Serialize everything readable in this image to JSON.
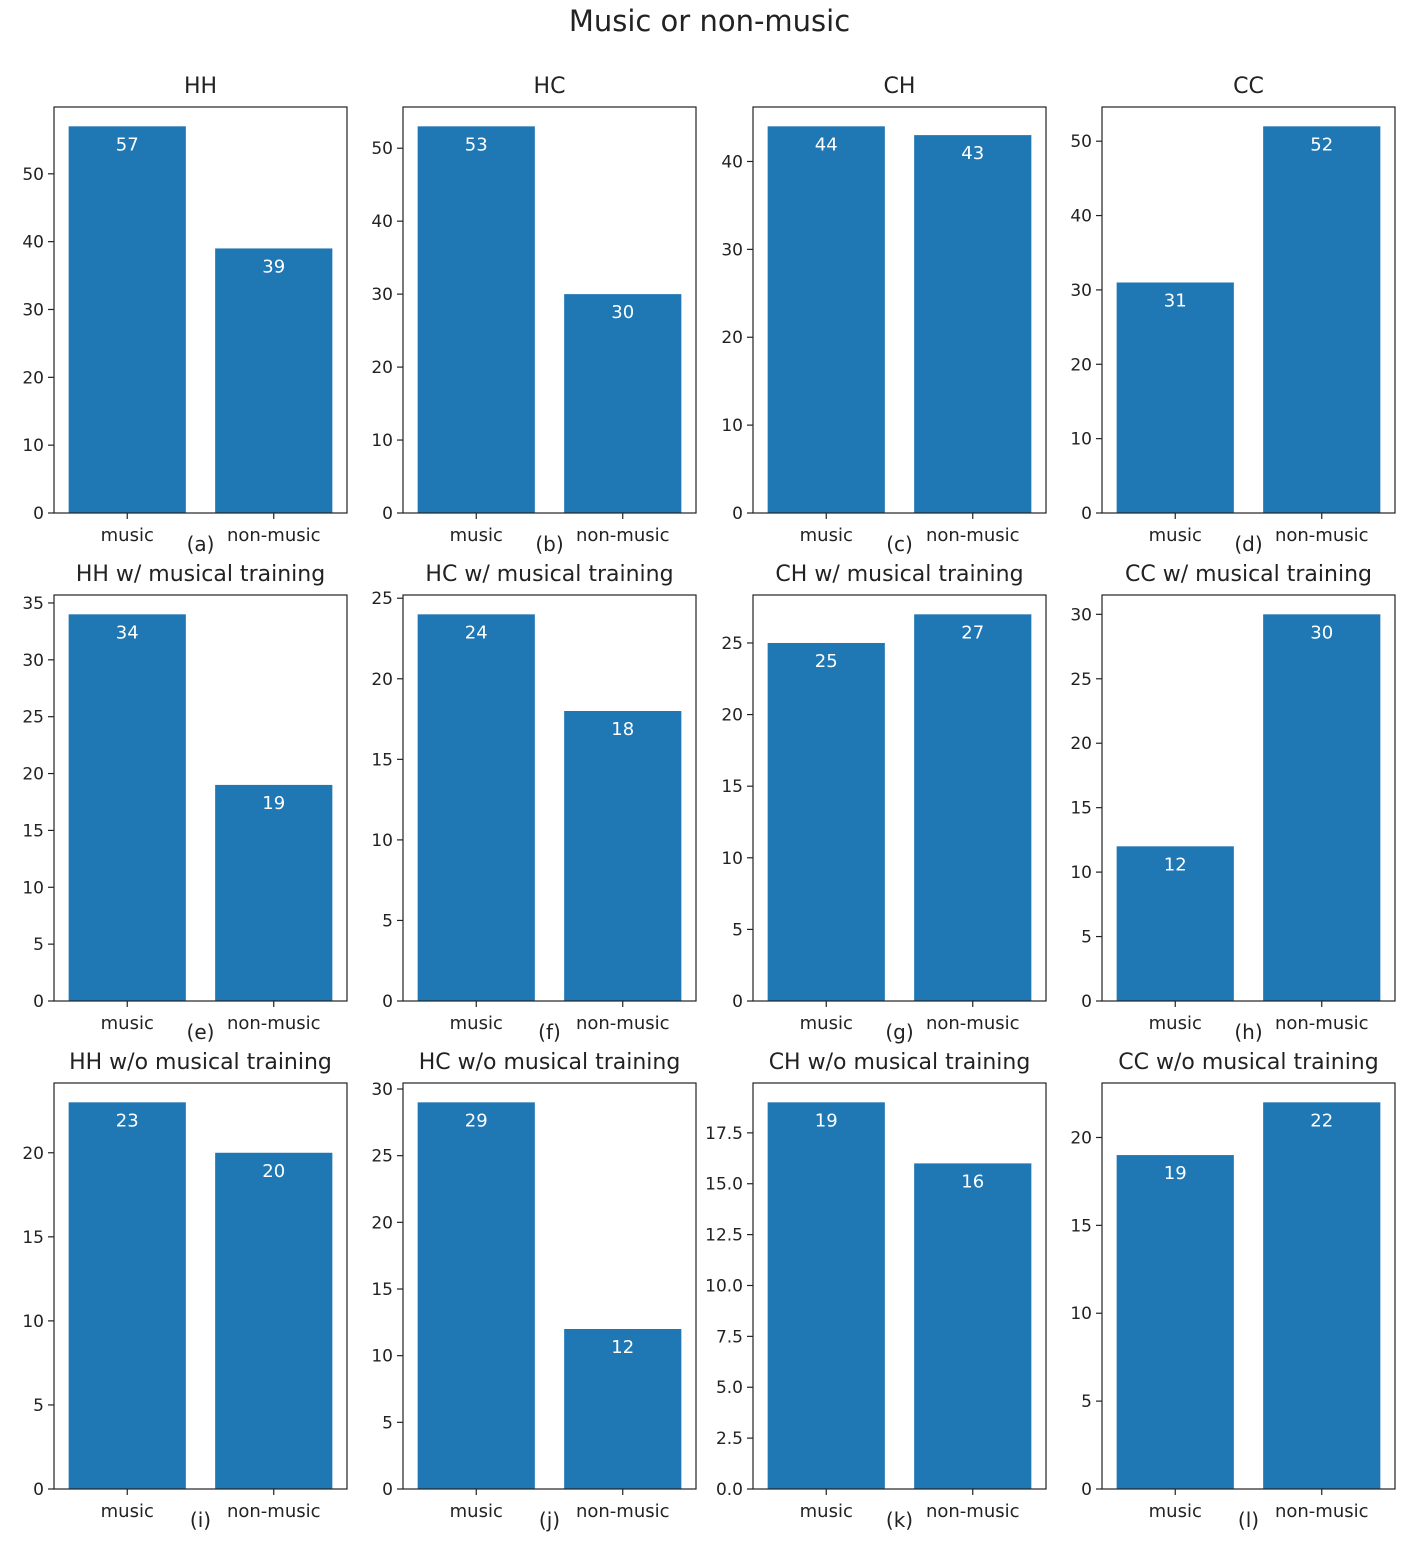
{
  "figure": {
    "title": "Music or non-music",
    "bar_color": "#1f77b4"
  },
  "chart_data": [
    {
      "type": "bar",
      "title": "HH",
      "sublabel": "(a)",
      "categories": [
        "music",
        "non-music"
      ],
      "values": [
        57,
        39
      ],
      "ylim": [
        0,
        59.85
      ],
      "yticks": [
        "0",
        "10",
        "20",
        "30",
        "40",
        "50"
      ]
    },
    {
      "type": "bar",
      "title": "HC",
      "sublabel": "(b)",
      "categories": [
        "music",
        "non-music"
      ],
      "values": [
        53,
        30
      ],
      "ylim": [
        0,
        55.65
      ],
      "yticks": [
        "0",
        "10",
        "20",
        "30",
        "40",
        "50"
      ]
    },
    {
      "type": "bar",
      "title": "CH",
      "sublabel": "(c)",
      "categories": [
        "music",
        "non-music"
      ],
      "values": [
        44,
        43
      ],
      "ylim": [
        0,
        46.2
      ],
      "yticks": [
        "0",
        "10",
        "20",
        "30",
        "40"
      ]
    },
    {
      "type": "bar",
      "title": "CC",
      "sublabel": "(d)",
      "categories": [
        "music",
        "non-music"
      ],
      "values": [
        31,
        52
      ],
      "ylim": [
        0,
        54.6
      ],
      "yticks": [
        "0",
        "10",
        "20",
        "30",
        "40",
        "50"
      ]
    },
    {
      "type": "bar",
      "title": "HH w/ musical training",
      "sublabel": "(e)",
      "categories": [
        "music",
        "non-music"
      ],
      "values": [
        34,
        19
      ],
      "ylim": [
        0,
        35.7
      ],
      "yticks": [
        "0",
        "5",
        "10",
        "15",
        "20",
        "25",
        "30",
        "35"
      ]
    },
    {
      "type": "bar",
      "title": "HC w/ musical training",
      "sublabel": "(f)",
      "categories": [
        "music",
        "non-music"
      ],
      "values": [
        24,
        18
      ],
      "ylim": [
        0,
        25.2
      ],
      "yticks": [
        "0",
        "5",
        "10",
        "15",
        "20",
        "25"
      ]
    },
    {
      "type": "bar",
      "title": "CH w/ musical training",
      "sublabel": "(g)",
      "categories": [
        "music",
        "non-music"
      ],
      "values": [
        25,
        27
      ],
      "ylim": [
        0,
        28.35
      ],
      "yticks": [
        "0",
        "5",
        "10",
        "15",
        "20",
        "25"
      ]
    },
    {
      "type": "bar",
      "title": "CC w/ musical training",
      "sublabel": "(h)",
      "categories": [
        "music",
        "non-music"
      ],
      "values": [
        12,
        30
      ],
      "ylim": [
        0,
        31.5
      ],
      "yticks": [
        "0",
        "5",
        "10",
        "15",
        "20",
        "25",
        "30"
      ]
    },
    {
      "type": "bar",
      "title": "HH w/o musical training",
      "sublabel": "(i)",
      "categories": [
        "music",
        "non-music"
      ],
      "values": [
        23,
        20
      ],
      "ylim": [
        0,
        24.15
      ],
      "yticks": [
        "0",
        "5",
        "10",
        "15",
        "20"
      ]
    },
    {
      "type": "bar",
      "title": "HC w/o musical training",
      "sublabel": "(j)",
      "categories": [
        "music",
        "non-music"
      ],
      "values": [
        29,
        12
      ],
      "ylim": [
        0,
        30.45
      ],
      "yticks": [
        "0",
        "5",
        "10",
        "15",
        "20",
        "25",
        "30"
      ]
    },
    {
      "type": "bar",
      "title": "CH w/o musical training",
      "sublabel": "(k)",
      "categories": [
        "music",
        "non-music"
      ],
      "values": [
        19,
        16
      ],
      "ylim": [
        0,
        19.95
      ],
      "yticks": [
        "0.0",
        "2.5",
        "5.0",
        "7.5",
        "10.0",
        "12.5",
        "15.0",
        "17.5"
      ]
    },
    {
      "type": "bar",
      "title": "CC w/o musical training",
      "sublabel": "(l)",
      "categories": [
        "music",
        "non-music"
      ],
      "values": [
        19,
        22
      ],
      "ylim": [
        0,
        23.1
      ],
      "yticks": [
        "0",
        "5",
        "10",
        "15",
        "20"
      ]
    }
  ]
}
